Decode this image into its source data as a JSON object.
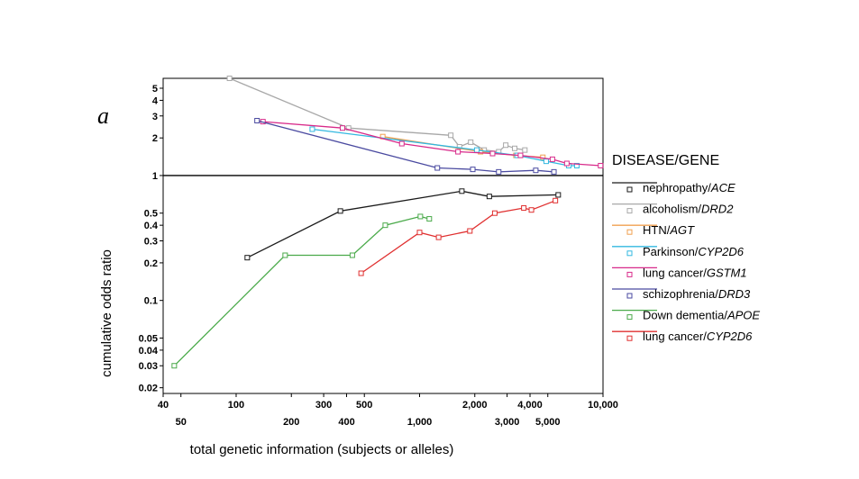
{
  "panel_label": "a",
  "chart_data": {
    "type": "line",
    "x_scale": "log",
    "y_scale": "log",
    "xlim": [
      40,
      10000
    ],
    "ylim": [
      0.018,
      6
    ],
    "reference_line_y": 1,
    "xlabel": "total genetic information (subjects or alleles)",
    "ylabel": "cumulative odds ratio",
    "x_ticks_upper": [
      {
        "value": 40,
        "label": "40"
      },
      {
        "value": 100,
        "label": "100"
      },
      {
        "value": 300,
        "label": "300"
      },
      {
        "value": 500,
        "label": "500"
      },
      {
        "value": 2000,
        "label": "2,000"
      },
      {
        "value": 4000,
        "label": "4,000"
      },
      {
        "value": 10000,
        "label": "10,000"
      }
    ],
    "x_ticks_lower": [
      {
        "value": 50,
        "label": "50"
      },
      {
        "value": 200,
        "label": "200"
      },
      {
        "value": 400,
        "label": "400"
      },
      {
        "value": 1000,
        "label": "1,000"
      },
      {
        "value": 3000,
        "label": "3,000"
      },
      {
        "value": 5000,
        "label": "5,000"
      }
    ],
    "y_ticks": [
      {
        "value": 5,
        "label": "5"
      },
      {
        "value": 4,
        "label": "4"
      },
      {
        "value": 3,
        "label": "3"
      },
      {
        "value": 2,
        "label": "2"
      },
      {
        "value": 1,
        "label": "1"
      },
      {
        "value": 0.5,
        "label": "0.5"
      },
      {
        "value": 0.4,
        "label": "0.4"
      },
      {
        "value": 0.3,
        "label": "0.3"
      },
      {
        "value": 0.2,
        "label": "0.2"
      },
      {
        "value": 0.1,
        "label": "0.1"
      },
      {
        "value": 0.05,
        "label": "0.05"
      },
      {
        "value": 0.04,
        "label": "0.04"
      },
      {
        "value": 0.03,
        "label": "0.03"
      },
      {
        "value": 0.02,
        "label": "0.02"
      }
    ],
    "legend_title": "DISEASE/GENE",
    "legend_position": "right",
    "series": [
      {
        "disease": "nephropathy/",
        "gene": "ACE",
        "color": "#1a1a1a",
        "points": [
          [
            115,
            0.22
          ],
          [
            370,
            0.52
          ],
          [
            1700,
            0.75
          ],
          [
            2400,
            0.68
          ],
          [
            5700,
            0.7
          ]
        ]
      },
      {
        "disease": "alcoholism/",
        "gene": "DRD2",
        "color": "#a8a8a8",
        "points": [
          [
            92,
            6.0
          ],
          [
            410,
            2.4
          ],
          [
            1480,
            2.1
          ],
          [
            1650,
            1.7
          ],
          [
            1900,
            1.85
          ],
          [
            2250,
            1.6
          ],
          [
            2700,
            1.55
          ],
          [
            2950,
            1.75
          ],
          [
            3300,
            1.65
          ],
          [
            3750,
            1.6
          ]
        ]
      },
      {
        "disease": "HTN/",
        "gene": "AGT",
        "color": "#f0a050",
        "points": [
          [
            630,
            2.05
          ],
          [
            2150,
            1.55
          ],
          [
            3350,
            1.45
          ],
          [
            4700,
            1.4
          ]
        ]
      },
      {
        "disease": "Parkinson/",
        "gene": "CYP2D6",
        "color": "#33b8e0",
        "points": [
          [
            260,
            2.35
          ],
          [
            2050,
            1.6
          ],
          [
            3400,
            1.45
          ],
          [
            4900,
            1.3
          ],
          [
            6500,
            1.2
          ],
          [
            7200,
            1.2
          ]
        ]
      },
      {
        "disease": "lung cancer/",
        "gene": "GSTM1",
        "color": "#d82a8a",
        "points": [
          [
            140,
            2.7
          ],
          [
            380,
            2.4
          ],
          [
            800,
            1.8
          ],
          [
            1620,
            1.55
          ],
          [
            2500,
            1.5
          ],
          [
            3550,
            1.45
          ],
          [
            5300,
            1.35
          ],
          [
            6350,
            1.25
          ],
          [
            9700,
            1.2
          ]
        ]
      },
      {
        "disease": "schizophrenia/",
        "gene": "DRD3",
        "color": "#4a4aa0",
        "points": [
          [
            130,
            2.75
          ],
          [
            1250,
            1.15
          ],
          [
            1950,
            1.12
          ],
          [
            2700,
            1.07
          ],
          [
            4300,
            1.1
          ],
          [
            5400,
            1.07
          ]
        ]
      },
      {
        "disease": "Down dementia/",
        "gene": "APOE",
        "color": "#4aaa4a",
        "points": [
          [
            46,
            0.03
          ],
          [
            185,
            0.23
          ],
          [
            430,
            0.23
          ],
          [
            650,
            0.4
          ],
          [
            1010,
            0.47
          ],
          [
            1130,
            0.45
          ]
        ]
      },
      {
        "disease": "lung cancer/",
        "gene": "CYP2D6",
        "color": "#e03030",
        "points": [
          [
            480,
            0.165
          ],
          [
            1000,
            0.35
          ],
          [
            1270,
            0.32
          ],
          [
            1880,
            0.36
          ],
          [
            2570,
            0.5
          ],
          [
            3700,
            0.55
          ],
          [
            4070,
            0.53
          ],
          [
            5500,
            0.63
          ]
        ]
      }
    ]
  }
}
